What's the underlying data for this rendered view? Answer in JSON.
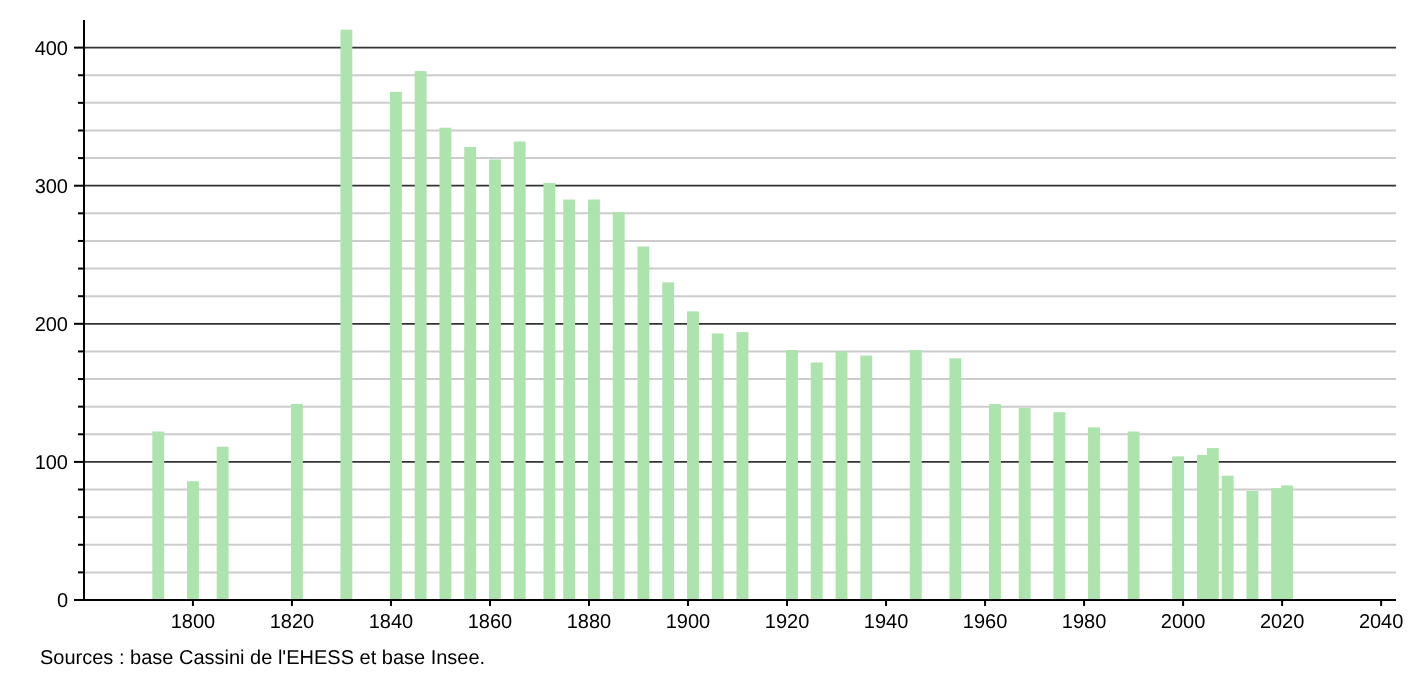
{
  "chart_data": {
    "type": "bar",
    "x": [
      1793,
      1800,
      1806,
      1821,
      1831,
      1841,
      1846,
      1851,
      1856,
      1861,
      1866,
      1872,
      1876,
      1881,
      1886,
      1891,
      1896,
      1901,
      1906,
      1911,
      1921,
      1926,
      1931,
      1936,
      1946,
      1954,
      1962,
      1968,
      1975,
      1982,
      1990,
      1999,
      2004,
      2006,
      2009,
      2014,
      2019,
      2021
    ],
    "values": [
      122,
      86,
      111,
      142,
      413,
      368,
      383,
      342,
      328,
      319,
      332,
      302,
      290,
      290,
      281,
      256,
      230,
      209,
      193,
      194,
      181,
      172,
      180,
      177,
      181,
      175,
      142,
      139,
      136,
      125,
      122,
      104,
      105,
      110,
      90,
      79,
      81,
      83
    ],
    "color": "#ade3ad",
    "xlim": [
      1778,
      2043
    ],
    "xticks": [
      1800,
      1820,
      1840,
      1860,
      1880,
      1900,
      1920,
      1940,
      1960,
      1980,
      2000,
      2020,
      2040
    ],
    "ylim": [
      0,
      420
    ],
    "yticks": [
      0,
      {
        "value": 20,
        "label": null
      },
      {
        "value": 40,
        "label": null
      },
      {
        "value": 60,
        "label": null
      },
      {
        "value": 80,
        "label": null
      },
      100,
      {
        "value": 120,
        "label": null
      },
      {
        "value": 140,
        "label": null
      },
      {
        "value": 160,
        "label": null
      },
      {
        "value": 180,
        "label": null
      },
      200,
      {
        "value": 220,
        "label": null
      },
      {
        "value": 240,
        "label": null
      },
      {
        "value": 260,
        "label": null
      },
      {
        "value": 280,
        "label": null
      },
      300,
      {
        "value": 320,
        "label": null
      },
      {
        "value": 340,
        "label": null
      },
      {
        "value": 360,
        "label": null
      },
      {
        "value": 380,
        "label": null
      },
      400
    ],
    "grid": "y",
    "annotations": [
      "Sources : base Cassini de l'EHESS et base Insee."
    ]
  }
}
